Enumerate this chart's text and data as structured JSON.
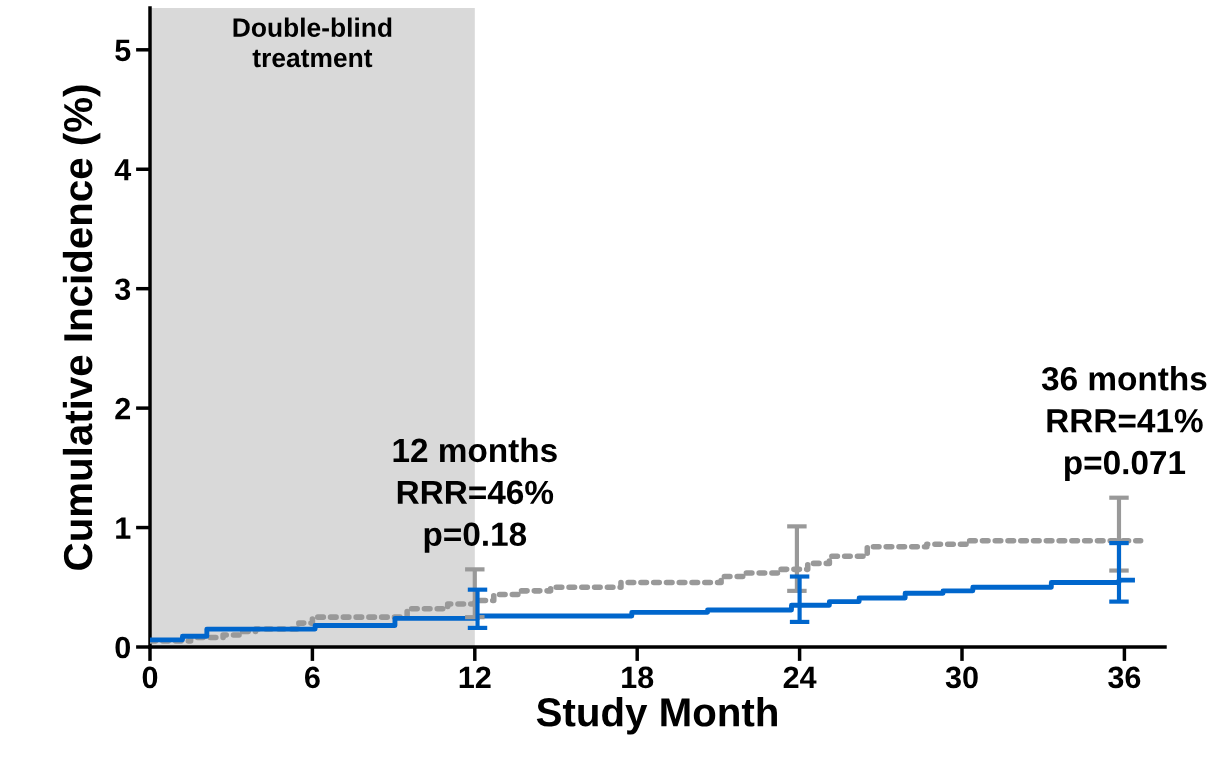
{
  "chart_data": {
    "type": "step",
    "xlabel": "Study Month",
    "ylabel": "Cumulative Incidence (%)",
    "xlim": [
      0,
      37.5
    ],
    "ylim": [
      0,
      5.35
    ],
    "xticks": [
      0,
      6,
      12,
      18,
      24,
      30,
      36
    ],
    "yticks": [
      0,
      1,
      2,
      3,
      4,
      5
    ],
    "grid": false,
    "legend": false,
    "bands": [
      {
        "axis": "x",
        "from": 0,
        "to": 12,
        "label": "Double-blind\ntreatment",
        "color": "#d9d9d9"
      }
    ],
    "annotations": [
      {
        "text": "12 months\nRRR=46%\np=0.18",
        "x": 12,
        "y": 0.65
      },
      {
        "text": "36 months\nRRR=41%\np=0.071",
        "x": 36,
        "y": 1.25
      }
    ],
    "series": [
      {
        "color": "#999999",
        "line_style": "dotted",
        "x": [
          0,
          1.5,
          2.7,
          3.3,
          3.9,
          5.5,
          6.0,
          9.5,
          11,
          12,
          12.7,
          13.6,
          14.8,
          17.4,
          19.7,
          21.1,
          21.9,
          23.3,
          23.9,
          24.3,
          25.1,
          26.5,
          28.7,
          30.2,
          35.8,
          36.6
        ],
        "values": [
          0.05,
          0.08,
          0.1,
          0.13,
          0.15,
          0.2,
          0.25,
          0.32,
          0.36,
          0.39,
          0.44,
          0.47,
          0.5,
          0.54,
          0.54,
          0.59,
          0.62,
          0.65,
          0.65,
          0.7,
          0.76,
          0.84,
          0.86,
          0.89,
          0.89,
          0.89
        ],
        "errors": [
          null,
          null,
          null,
          null,
          null,
          null,
          null,
          null,
          null,
          [
            0.25,
            0.65
          ],
          null,
          null,
          null,
          null,
          null,
          null,
          null,
          null,
          [
            0.47,
            1.01
          ],
          null,
          null,
          null,
          null,
          null,
          [
            0.64,
            1.25
          ],
          null
        ]
      },
      {
        "color": "#0066cc",
        "line_style": "solid",
        "x": [
          0,
          1.2,
          2.1,
          6.1,
          9.05,
          12.1,
          17.8,
          20.6,
          23.7,
          24.0,
          25.1,
          26.2,
          27.9,
          29.3,
          30.4,
          33.3,
          35.8,
          36.3
        ],
        "values": [
          0.06,
          0.09,
          0.15,
          0.18,
          0.24,
          0.26,
          0.29,
          0.31,
          0.35,
          0.35,
          0.38,
          0.41,
          0.45,
          0.47,
          0.5,
          0.54,
          0.56,
          0.56
        ],
        "errors": [
          null,
          null,
          null,
          null,
          null,
          [
            0.16,
            0.48
          ],
          null,
          null,
          null,
          [
            0.21,
            0.59
          ],
          null,
          null,
          null,
          null,
          null,
          null,
          [
            0.38,
            0.87
          ],
          null
        ]
      }
    ]
  }
}
